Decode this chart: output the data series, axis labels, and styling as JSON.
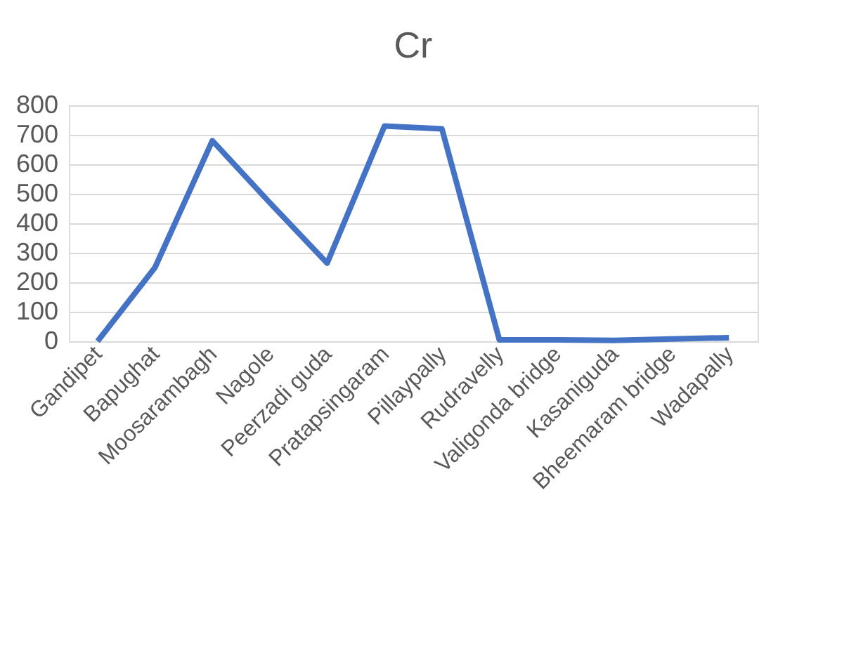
{
  "chart_data": {
    "type": "line",
    "title": "Cr",
    "categories": [
      "Gandipet",
      "Bapughat",
      "Moosarambagh",
      "Nagole",
      "Peerzadi guda",
      "Pratapsingaram",
      "Pillaypally",
      "Rudravelly",
      "Valigonda bridge",
      "Kasaniguda",
      "Bheemaram bridge",
      "Wadapally"
    ],
    "series": [
      {
        "color": "#4472c4",
        "values": [
          0,
          250,
          680,
          470,
          265,
          730,
          720,
          5,
          5,
          3,
          8,
          12
        ]
      }
    ],
    "ylim": [
      0,
      800
    ],
    "yticks": [
      0,
      100,
      200,
      300,
      400,
      500,
      600,
      700,
      800
    ],
    "grid": "y",
    "legend": false,
    "marker": "none",
    "line_style": "solid"
  }
}
